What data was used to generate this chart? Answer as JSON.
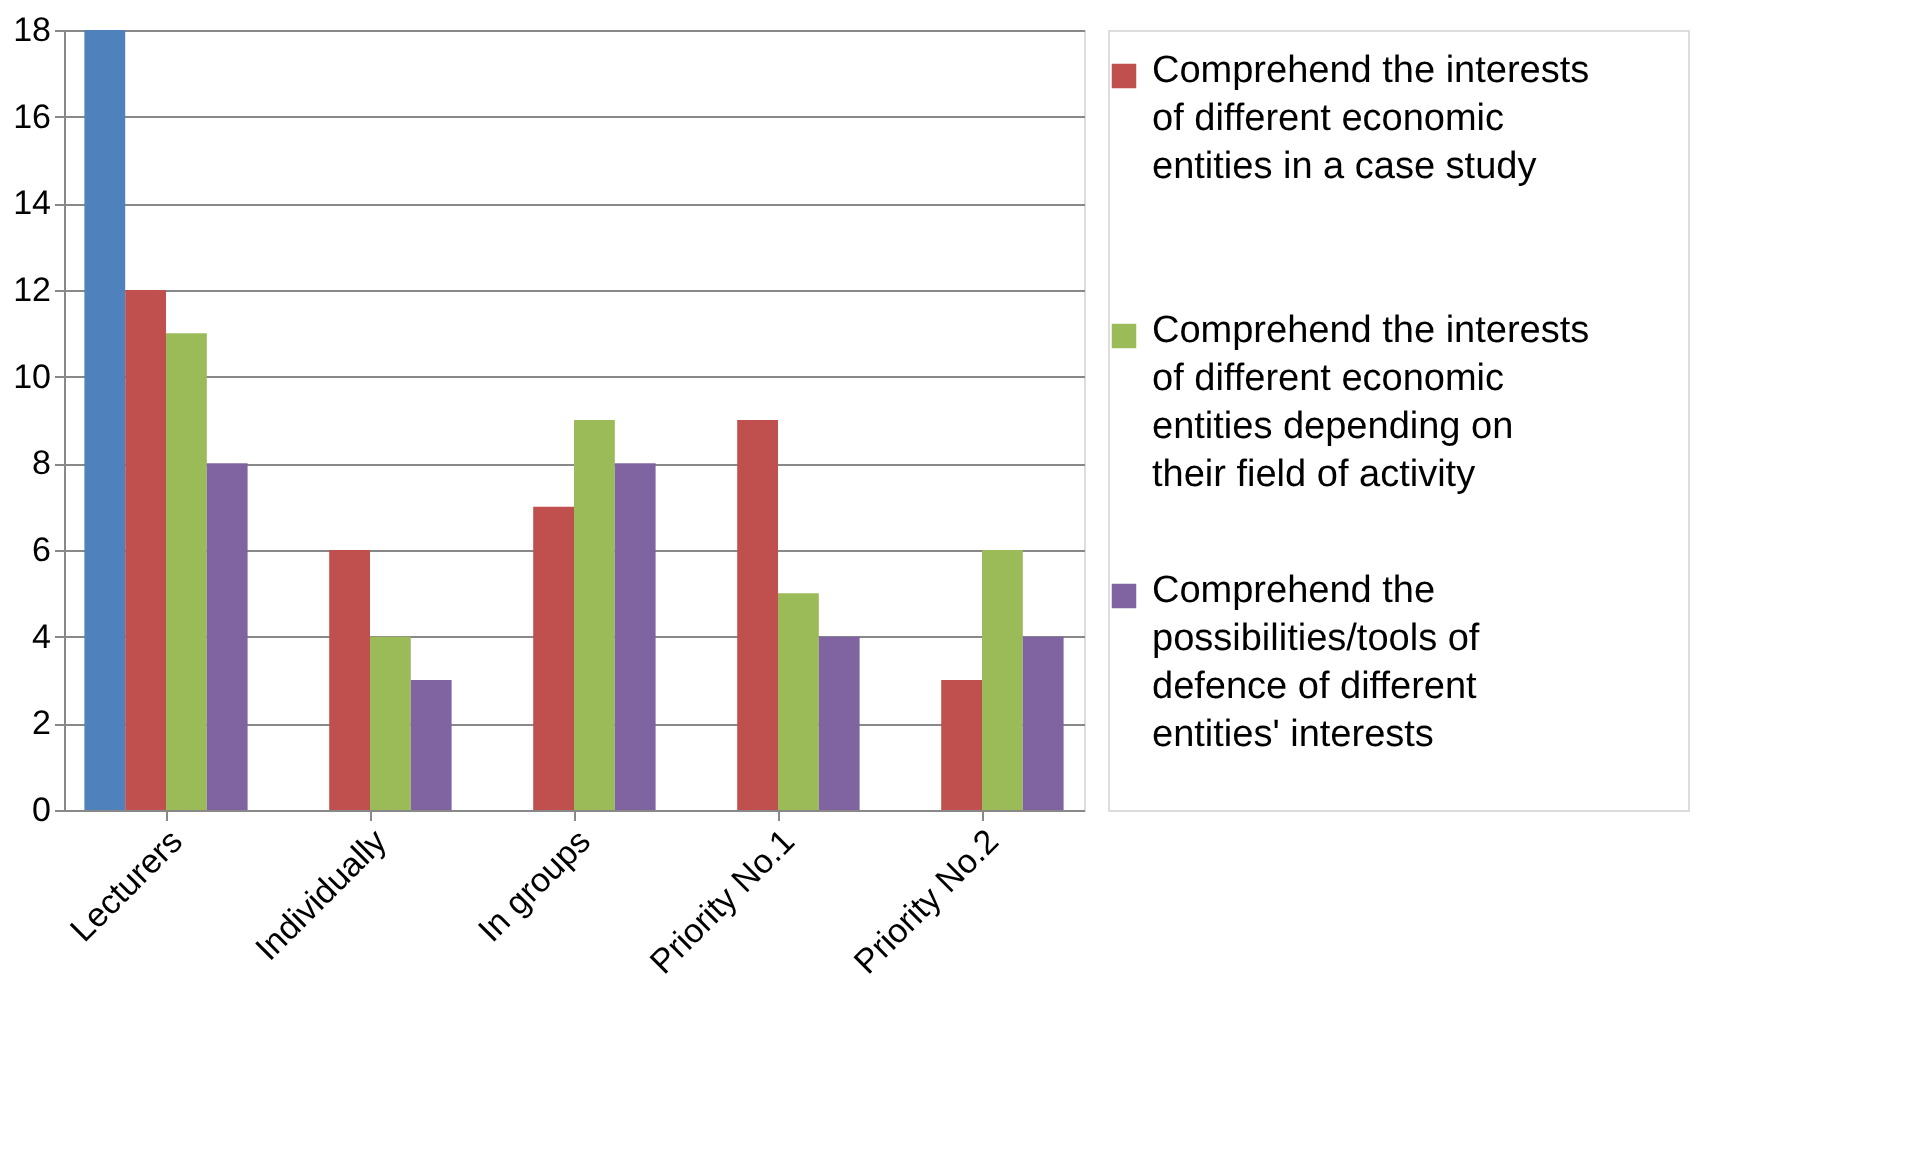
{
  "chart_data": {
    "type": "bar",
    "categories": [
      "Lecturers",
      "Individually",
      "In groups",
      "Priority No.1",
      "Priority No.2"
    ],
    "series": [
      {
        "color": "#4f81bd",
        "values": [
          18,
          null,
          null,
          null,
          null
        ]
      },
      {
        "name": "Comprehend the interests of different economic entities in a case study",
        "color": "#c0504d",
        "values": [
          12,
          6,
          7,
          9,
          3
        ]
      },
      {
        "name": "Comprehend the interests of different economic entities depending on their field of activity",
        "color": "#9bbb59",
        "values": [
          11,
          4,
          9,
          5,
          6
        ]
      },
      {
        "name": "Comprehend the possibilities/tools of defence of different entities' interests",
        "color": "#8064a2",
        "values": [
          8,
          3,
          8,
          4,
          4
        ]
      }
    ],
    "ylim": [
      0,
      18
    ],
    "yticks": [
      0,
      2,
      4,
      6,
      8,
      10,
      12,
      14,
      16,
      18
    ],
    "grid": "y",
    "legend": "right"
  }
}
